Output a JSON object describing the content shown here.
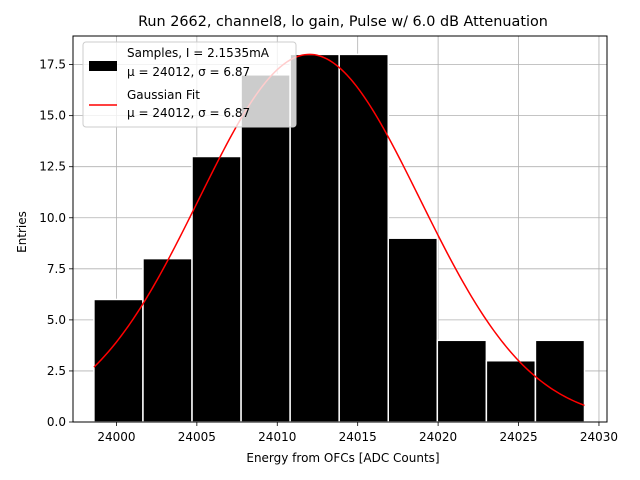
{
  "chart_data": {
    "type": "bar",
    "title": "Run 2662, channel8, lo gain, Pulse w/ 6.0 dB Attenuation",
    "xlabel": "Energy from OFCs [ADC Counts]",
    "ylabel": "Entries",
    "xlim": [
      23997.3,
      24030.5
    ],
    "ylim": [
      0,
      18.9
    ],
    "grid": true,
    "x_ticks": [
      24000,
      24005,
      24010,
      24015,
      24020,
      24025,
      24030
    ],
    "x_tick_labels": [
      "24000",
      "24005",
      "24010",
      "24015",
      "24020",
      "24025",
      "24030"
    ],
    "y_ticks": [
      0,
      2.5,
      5,
      7.5,
      10,
      12.5,
      15,
      17.5
    ],
    "y_tick_labels": [
      "0.0",
      "2.5",
      "5.0",
      "7.5",
      "10.0",
      "12.5",
      "15.0",
      "17.5"
    ],
    "bins": {
      "edges": [
        23998.6,
        24001.65,
        24004.7,
        24007.75,
        24010.8,
        24013.85,
        24016.9,
        24019.95,
        24023.0,
        24026.05,
        24029.1
      ],
      "counts": [
        6,
        8,
        13,
        17,
        18,
        18,
        9,
        4,
        3,
        4
      ],
      "color": "#000000",
      "edgecolor": "#ffffff"
    },
    "fit": {
      "mu": 24012,
      "sigma": 6.87,
      "amplitude": 18.0,
      "x_range": [
        23998.6,
        24029.1
      ],
      "color": "#ff0000"
    },
    "legend": {
      "placement": "upper left",
      "entries": [
        {
          "kind": "patch",
          "color": "#000000",
          "lines": [
            "Samples, I = 2.1535mA",
            "μ = 24012, σ = 6.87"
          ]
        },
        {
          "kind": "line",
          "color": "#ff0000",
          "lines": [
            "Gaussian Fit",
            "μ = 24012, σ = 6.87"
          ]
        }
      ]
    }
  }
}
